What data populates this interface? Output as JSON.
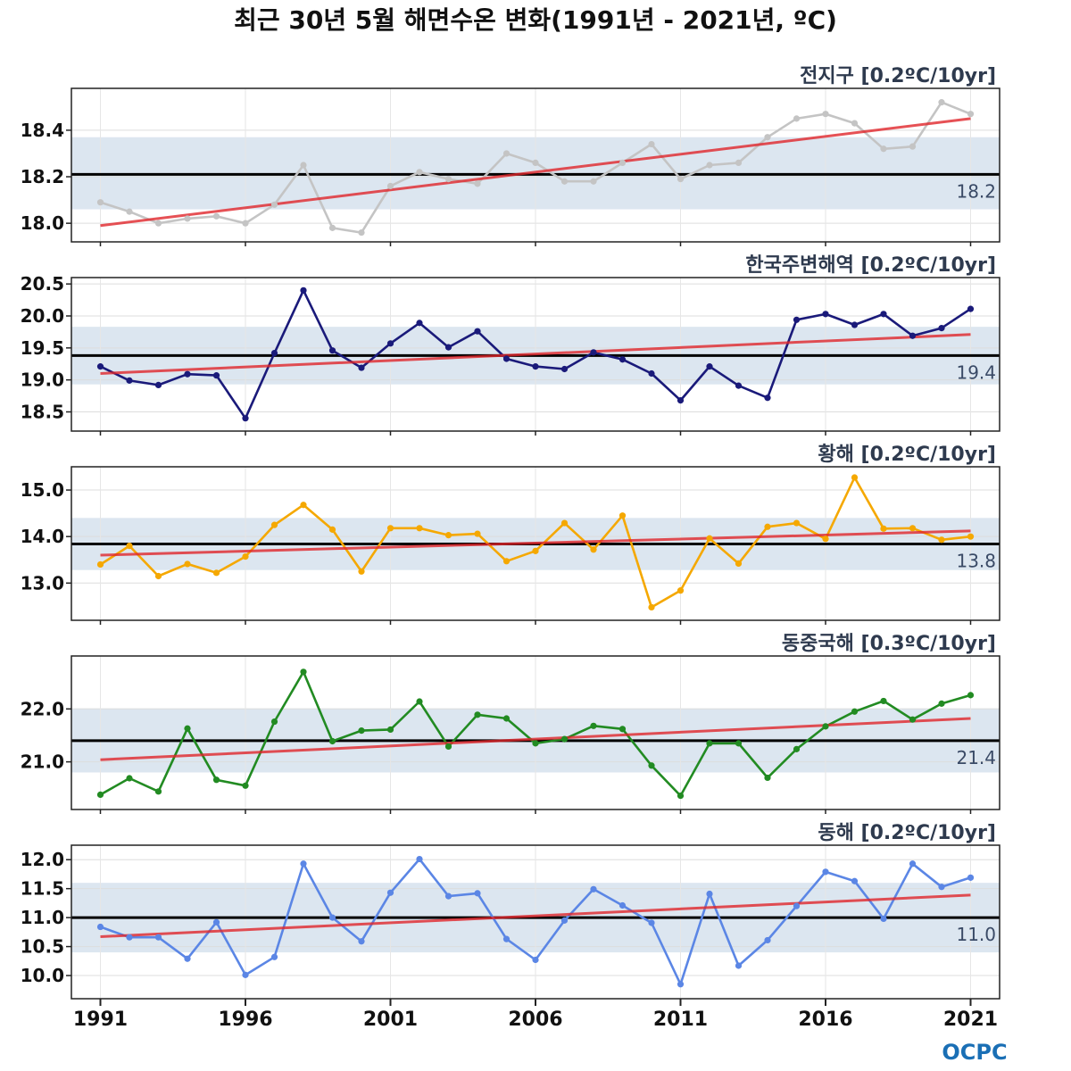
{
  "title": "최근 30년 5월 해면수온 변화(1991년 - 2021년, ºC)",
  "logo": "OCPC",
  "chart_data": {
    "type": "line",
    "x": [
      1991,
      1992,
      1993,
      1994,
      1995,
      1996,
      1997,
      1998,
      1999,
      2000,
      2001,
      2002,
      2003,
      2004,
      2005,
      2006,
      2007,
      2008,
      2009,
      2010,
      2011,
      2012,
      2013,
      2014,
      2015,
      2016,
      2017,
      2018,
      2019,
      2020,
      2021
    ],
    "xticks": [
      "1991",
      "1996",
      "2001",
      "2006",
      "2011",
      "2016",
      "2021"
    ],
    "xlim": [
      1990.0,
      2022.0
    ],
    "grid": true,
    "panels": [
      {
        "title": "전지구 [0.2ºC/10yr]",
        "color": "#c4c4c4",
        "ylim": [
          17.92,
          18.58
        ],
        "yticks": [
          "18.0",
          "18.2",
          "18.4"
        ],
        "mean": 18.21,
        "mean_label": "18.2",
        "band": [
          18.06,
          18.37
        ],
        "trend": [
          17.99,
          18.45
        ],
        "values": [
          18.09,
          18.05,
          18.0,
          18.02,
          18.03,
          18.0,
          18.08,
          18.25,
          17.98,
          17.96,
          18.16,
          18.22,
          18.19,
          18.17,
          18.3,
          18.26,
          18.18,
          18.18,
          18.26,
          18.34,
          18.19,
          18.25,
          18.26,
          18.37,
          18.45,
          18.47,
          18.43,
          18.32,
          18.33,
          18.52,
          18.47
        ]
      },
      {
        "title": "한국주변해역 [0.2ºC/10yr]",
        "color": "#1a1a7a",
        "ylim": [
          18.2,
          20.6
        ],
        "yticks": [
          "18.5",
          "19.0",
          "19.5",
          "20.0",
          "20.5"
        ],
        "mean": 19.38,
        "mean_label": "19.4",
        "band": [
          18.93,
          19.83
        ],
        "trend": [
          19.1,
          19.71
        ],
        "values": [
          19.21,
          18.99,
          18.92,
          19.09,
          19.07,
          18.4,
          19.42,
          20.4,
          19.46,
          19.19,
          19.57,
          19.89,
          19.51,
          19.76,
          19.33,
          19.21,
          19.17,
          19.43,
          19.32,
          19.1,
          18.68,
          19.21,
          18.91,
          18.72,
          19.94,
          20.03,
          19.86,
          20.03,
          19.69,
          19.81,
          20.11
        ]
      },
      {
        "title": "황해 [0.2ºC/10yr]",
        "color": "#f5a800",
        "ylim": [
          12.2,
          15.5
        ],
        "yticks": [
          "13.0",
          "14.0",
          "15.0"
        ],
        "mean": 13.84,
        "mean_label": "13.8",
        "band": [
          13.28,
          14.4
        ],
        "trend": [
          13.6,
          14.12
        ],
        "values": [
          13.4,
          13.8,
          13.15,
          13.41,
          13.22,
          13.57,
          14.25,
          14.68,
          14.15,
          13.25,
          14.18,
          14.18,
          14.03,
          14.06,
          13.47,
          13.69,
          14.29,
          13.72,
          14.45,
          12.48,
          12.84,
          13.96,
          13.42,
          14.21,
          14.29,
          13.95,
          15.27,
          14.17,
          14.18,
          13.93,
          14.0
        ]
      },
      {
        "title": "동중국해 [0.3ºC/10yr]",
        "color": "#228b22",
        "ylim": [
          20.1,
          23.0
        ],
        "yticks": [
          "21.0",
          "22.0"
        ],
        "mean": 21.4,
        "mean_label": "21.4",
        "band": [
          20.8,
          22.01
        ],
        "trend": [
          21.04,
          21.82
        ],
        "values": [
          20.38,
          20.69,
          20.44,
          21.63,
          20.66,
          20.55,
          21.76,
          22.7,
          21.39,
          21.59,
          21.61,
          22.14,
          21.29,
          21.89,
          21.82,
          21.35,
          21.43,
          21.68,
          21.62,
          20.93,
          20.36,
          21.35,
          21.35,
          20.7,
          21.24,
          21.67,
          21.95,
          22.15,
          21.8,
          22.1,
          22.26
        ]
      },
      {
        "title": "동해 [0.2ºC/10yr]",
        "color": "#5b86e5",
        "ylim": [
          9.6,
          12.25
        ],
        "yticks": [
          "10.0",
          "10.5",
          "11.0",
          "11.5",
          "12.0"
        ],
        "mean": 11.0,
        "mean_label": "11.0",
        "band": [
          10.4,
          11.6
        ],
        "trend": [
          10.67,
          11.39
        ],
        "values": [
          10.84,
          10.66,
          10.66,
          10.29,
          10.92,
          10.01,
          10.32,
          11.93,
          11.0,
          10.59,
          11.43,
          12.01,
          11.37,
          11.42,
          10.63,
          10.27,
          10.95,
          11.49,
          11.21,
          10.91,
          9.85,
          11.41,
          10.17,
          10.61,
          11.2,
          11.79,
          11.63,
          10.98,
          11.93,
          11.53,
          11.69
        ]
      }
    ]
  }
}
